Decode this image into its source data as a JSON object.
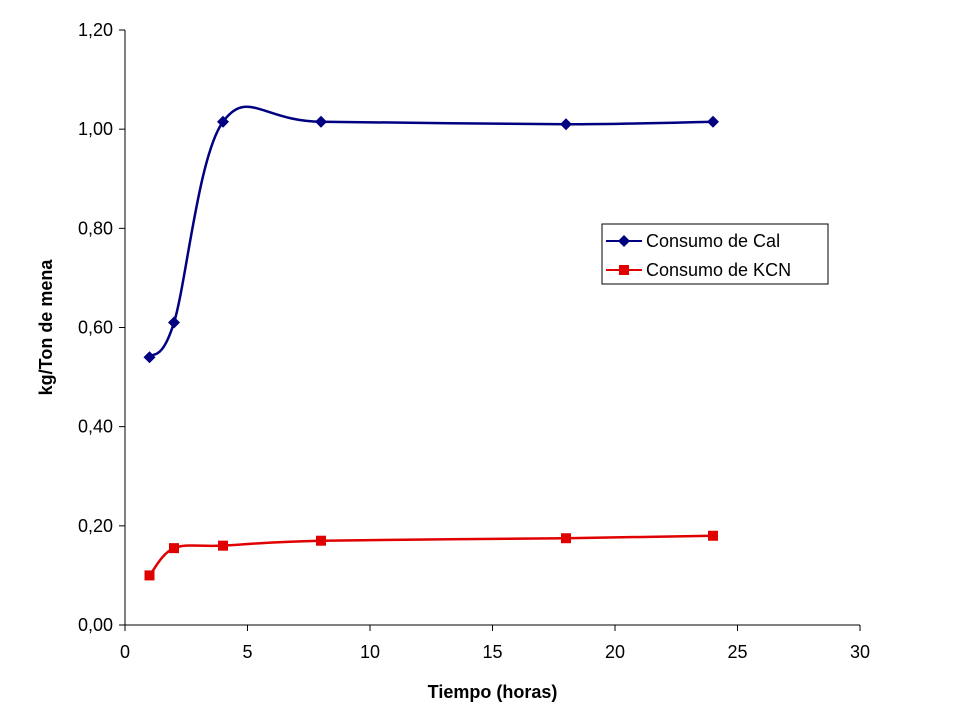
{
  "chart_data": {
    "type": "line",
    "title": "",
    "xlabel": "Tiempo (horas)",
    "ylabel": "kg/Ton de mena",
    "xlim": [
      0,
      30
    ],
    "ylim": [
      0,
      1.2
    ],
    "x_ticks": [
      "0",
      "5",
      "10",
      "15",
      "20",
      "25",
      "30"
    ],
    "y_ticks": [
      "0,00",
      "0,20",
      "0,40",
      "0,60",
      "0,80",
      "1,00",
      "1,20"
    ],
    "grid": false,
    "legend_position": "right",
    "smooth": true,
    "series": [
      {
        "name": "Consumo de Cal",
        "color": "#000080",
        "marker": "diamond",
        "x": [
          1,
          2,
          4,
          8,
          18,
          24
        ],
        "y": [
          0.54,
          0.61,
          1.015,
          1.015,
          1.01,
          1.015
        ]
      },
      {
        "name": "Consumo de KCN",
        "color": "#e00000",
        "marker": "square",
        "x": [
          1,
          2,
          4,
          8,
          18,
          24
        ],
        "y": [
          0.1,
          0.155,
          0.16,
          0.17,
          0.175,
          0.18
        ]
      }
    ]
  }
}
